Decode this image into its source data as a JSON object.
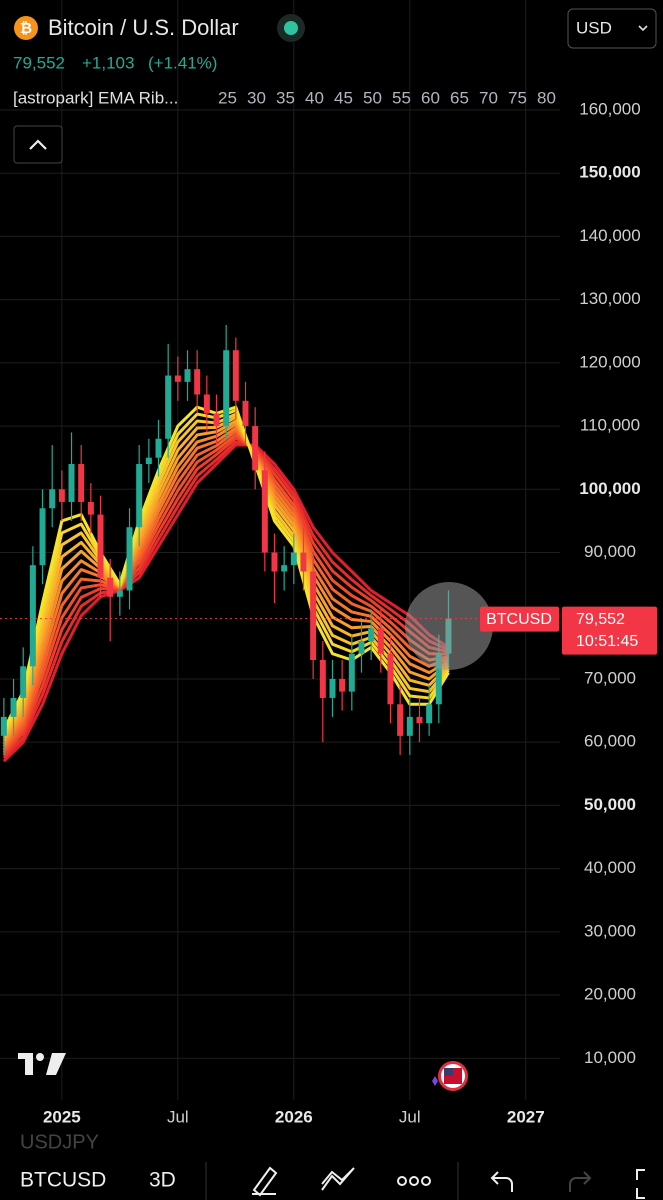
{
  "header": {
    "symbol": "Bitcoin / U.S. Dollar",
    "price": "79,552",
    "change": "+1,103",
    "change_pct": "(+1.41%)",
    "indicator": "[astropark] EMA Rib...",
    "currency": "USD"
  },
  "chart_data": {
    "type": "candlestick",
    "x": [
      -3,
      -2.5,
      -2,
      -1.5,
      -1,
      -0.5,
      0,
      0.5,
      1,
      1.5,
      2,
      2.5,
      3,
      3.5,
      4,
      4.5,
      5,
      5.5,
      6,
      6.5,
      7,
      7.5,
      8,
      8.5,
      9,
      9.5,
      10,
      10.5,
      11,
      11.5,
      12,
      12.5,
      13,
      13.5,
      14,
      14.5,
      15,
      15.5,
      16,
      16.5,
      17,
      17.5,
      18,
      18.5,
      19,
      19.5,
      20
    ],
    "open": [
      61000,
      64000,
      67000,
      72000,
      88000,
      97000,
      100000,
      98000,
      104000,
      98000,
      96000,
      86000,
      83000,
      84000,
      94000,
      104000,
      105000,
      108000,
      118000,
      117000,
      119000,
      115000,
      112000,
      110000,
      122000,
      114000,
      110000,
      103000,
      90000,
      87000,
      88000,
      90000,
      87000,
      73000,
      67000,
      70000,
      68000,
      74000,
      76000,
      78000,
      74000,
      66000,
      61000,
      64000,
      63000,
      66000,
      74000
    ],
    "high": [
      67000,
      70000,
      75000,
      91000,
      100000,
      107000,
      103000,
      109000,
      107000,
      101000,
      99000,
      89000,
      87000,
      97000,
      107000,
      108000,
      111000,
      123000,
      121000,
      122000,
      122000,
      118000,
      115000,
      126000,
      124000,
      117000,
      113000,
      106000,
      93000,
      91000,
      93000,
      94000,
      90000,
      76000,
      73000,
      73000,
      77000,
      79000,
      81000,
      81000,
      77000,
      69000,
      67000,
      67000,
      69000,
      77000,
      84000
    ],
    "low": [
      58000,
      61000,
      64000,
      69000,
      85000,
      94000,
      95000,
      95000,
      95000,
      93000,
      83000,
      76000,
      80000,
      81000,
      91000,
      101000,
      102000,
      105000,
      114000,
      114000,
      112000,
      109000,
      107000,
      108000,
      111000,
      107000,
      100000,
      87000,
      82000,
      84000,
      85000,
      84000,
      70000,
      60000,
      64000,
      65000,
      65000,
      71000,
      73000,
      71000,
      63000,
      58000,
      58000,
      60000,
      61000,
      63000,
      72000
    ],
    "close": [
      64000,
      67000,
      72000,
      88000,
      97000,
      100000,
      98000,
      104000,
      98000,
      96000,
      86000,
      83000,
      84000,
      94000,
      104000,
      105000,
      108000,
      118000,
      117000,
      119000,
      115000,
      112000,
      110000,
      122000,
      114000,
      110000,
      103000,
      90000,
      87000,
      88000,
      90000,
      87000,
      73000,
      67000,
      70000,
      68000,
      74000,
      76000,
      78000,
      74000,
      66000,
      61000,
      64000,
      63000,
      66000,
      74000,
      79552
    ],
    "up_color": "#22ab94",
    "down_color": "#f23645",
    "xlim": [
      -3.2,
      25.77
    ],
    "xticks": [
      {
        "value": 0,
        "label": "2025",
        "bold": true
      },
      {
        "value": 6,
        "label": "Jul"
      },
      {
        "value": 12,
        "label": "2026",
        "bold": true
      },
      {
        "value": 18,
        "label": "Jul"
      },
      {
        "value": 24,
        "label": "2027",
        "bold": true
      }
    ],
    "ylim": [
      3400,
      177400
    ],
    "yticks": [
      {
        "value": 160000,
        "label": "160,000"
      },
      {
        "value": 150000,
        "label": "150,000",
        "bold": true
      },
      {
        "value": 140000,
        "label": "140,000"
      },
      {
        "value": 130000,
        "label": "130,000"
      },
      {
        "value": 120000,
        "label": "120,000"
      },
      {
        "value": 110000,
        "label": "110,000"
      },
      {
        "value": 100000,
        "label": "100,000",
        "bold": true
      },
      {
        "value": 90000,
        "label": "90,000"
      },
      {
        "value": 70000,
        "label": "70,000"
      },
      {
        "value": 60000,
        "label": "60,000"
      },
      {
        "value": 50000,
        "label": "50,000",
        "bold": true
      },
      {
        "value": 40000,
        "label": "40,000"
      },
      {
        "value": 30000,
        "label": "30,000"
      },
      {
        "value": 20000,
        "label": "20,000"
      },
      {
        "value": 10000,
        "label": "10,000"
      }
    ],
    "grid": true,
    "last_price": {
      "value": 79552,
      "label": "79,552"
    },
    "symbol_tag": "BTCUSD",
    "countdown": "10:51:45",
    "ribbon": {
      "x": [
        -3,
        -2,
        -1,
        0,
        1,
        2,
        3,
        4,
        5,
        6,
        7,
        8,
        9,
        10,
        11,
        12,
        13,
        14,
        15,
        16,
        17,
        18,
        19,
        20
      ],
      "series": [
        {
          "name": "25",
          "color": "#f5e52a",
          "values": [
            62000,
            68000,
            82000,
            95000,
            96000,
            90000,
            85000,
            95000,
            103000,
            110000,
            113000,
            112000,
            113000,
            104000,
            95000,
            91000,
            80000,
            74000,
            73000,
            75000,
            71000,
            66000,
            66000,
            71000
          ]
        },
        {
          "name": "30",
          "color": "#f7d52a",
          "values": [
            61500,
            67300,
            80500,
            93100,
            94500,
            89400,
            84900,
            94200,
            101900,
            108700,
            111900,
            111300,
            112500,
            104300,
            95800,
            91800,
            81300,
            75500,
            74300,
            75800,
            72000,
            67300,
            67000,
            71400
          ]
        },
        {
          "name": "35",
          "color": "#f8c42a",
          "values": [
            61100,
            66500,
            79100,
            91200,
            93100,
            88700,
            84800,
            93400,
            100800,
            107500,
            110800,
            110500,
            111900,
            104500,
            96600,
            92600,
            82500,
            76900,
            75500,
            76600,
            73000,
            68500,
            68000,
            71700
          ]
        },
        {
          "name": "40",
          "color": "#f9b22a",
          "values": [
            60600,
            65800,
            77600,
            89300,
            91600,
            88100,
            84700,
            92500,
            99700,
            106200,
            109700,
            109800,
            111400,
            104800,
            97500,
            93500,
            83800,
            78400,
            76800,
            77500,
            74000,
            69800,
            69000,
            72100
          ]
        },
        {
          "name": "45",
          "color": "#f9a02a",
          "values": [
            60200,
            65100,
            76200,
            87400,
            90200,
            87500,
            84600,
            91700,
            98600,
            104900,
            108600,
            109100,
            110800,
            105100,
            98300,
            94300,
            85100,
            79800,
            78100,
            78300,
            75000,
            71100,
            70000,
            72500
          ]
        },
        {
          "name": "50",
          "color": "#f88c2a",
          "values": [
            59700,
            64400,
            74700,
            85500,
            88700,
            86800,
            84500,
            90900,
            97500,
            103600,
            107500,
            108400,
            110300,
            105400,
            99100,
            95100,
            86400,
            81300,
            79400,
            79100,
            76000,
            72400,
            71000,
            72800
          ]
        },
        {
          "name": "55",
          "color": "#f7782a",
          "values": [
            59300,
            63600,
            73300,
            83500,
            87300,
            86200,
            84500,
            90100,
            96500,
            102400,
            106500,
            107600,
            109700,
            105600,
            99900,
            95900,
            87600,
            82700,
            80600,
            79900,
            77000,
            73600,
            72000,
            73200
          ]
        },
        {
          "name": "60",
          "color": "#f5632a",
          "values": [
            58800,
            62900,
            71800,
            81600,
            85800,
            85500,
            84400,
            89300,
            95400,
            101100,
            105400,
            106900,
            109200,
            105900,
            100700,
            96700,
            88900,
            84200,
            81900,
            80700,
            78000,
            74900,
            73000,
            73500
          ]
        },
        {
          "name": "65",
          "color": "#f24f2a",
          "values": [
            58400,
            62200,
            70400,
            79700,
            84400,
            84900,
            84300,
            88500,
            94300,
            99800,
            104300,
            106200,
            108600,
            106200,
            101500,
            97500,
            90200,
            85600,
            83200,
            81500,
            79000,
            76200,
            74000,
            73900
          ]
        },
        {
          "name": "70",
          "color": "#ee3d2a",
          "values": [
            57900,
            61500,
            68900,
            77800,
            82900,
            84300,
            84200,
            87600,
            93200,
            98500,
            103200,
            105500,
            108100,
            106500,
            102400,
            98400,
            91500,
            87100,
            84500,
            82400,
            80000,
            77500,
            75000,
            74300
          ]
        },
        {
          "name": "75",
          "color": "#e82c2b",
          "values": [
            57500,
            60700,
            67500,
            75900,
            81500,
            83600,
            84100,
            86800,
            92100,
            97300,
            102100,
            104700,
            107500,
            106700,
            103200,
            99200,
            92700,
            88500,
            85700,
            83200,
            81000,
            78700,
            76000,
            74600
          ]
        },
        {
          "name": "80",
          "color": "#e01e2e",
          "values": [
            57000,
            60000,
            66000,
            74000,
            80000,
            83000,
            84000,
            86000,
            91000,
            96000,
            101000,
            104000,
            107000,
            107000,
            104000,
            100000,
            94000,
            90000,
            87000,
            84000,
            82000,
            80000,
            77000,
            75000
          ]
        }
      ]
    }
  },
  "toolbar": {
    "symbol": "BTCUSD",
    "interval": "3D",
    "hint": "USDJPY"
  }
}
